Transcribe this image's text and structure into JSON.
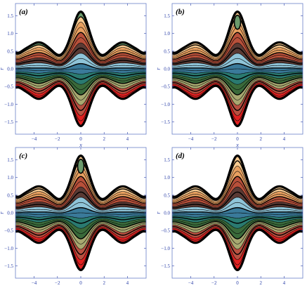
{
  "chart_data": [
    {
      "type": "area",
      "panel": "(a)",
      "xlabel": "x",
      "ylabel": "r",
      "xlim": [
        -5.6,
        5.6
      ],
      "ylim": [
        -1.85,
        1.85
      ],
      "xticks": [
        "−4",
        "−2",
        "0",
        "2",
        "4"
      ],
      "xtick_values": [
        -4,
        -2,
        0,
        2,
        4
      ],
      "yticks": [
        "1.5",
        "1.0",
        "0.5",
        "0.0",
        "−0.5",
        "−1.0",
        "−1.5"
      ],
      "ytick_values": [
        1.5,
        1.0,
        0.5,
        0.0,
        -0.5,
        -1.0,
        -1.5
      ],
      "upper_boundary": {
        "base": 0.55,
        "peak_x": 0,
        "peak_r": 1.62,
        "side_peaks_x": [
          -3.6,
          3.6
        ],
        "side_peak_r": 0.75
      },
      "lower_boundary": {
        "base": -0.6,
        "trough_x": 0,
        "trough_r": -1.62,
        "side_troughs_x": [
          -3.6,
          3.6
        ],
        "side_trough_r": -0.85
      },
      "central_top_fill": "#6b9a6c",
      "inner_closed_bolus": false
    },
    {
      "type": "area",
      "panel": "(b)",
      "xlabel": "x",
      "ylabel": "r",
      "xlim": [
        -5.6,
        5.6
      ],
      "ylim": [
        -1.85,
        1.85
      ],
      "xticks": [
        "−4",
        "−2",
        "0",
        "2",
        "4"
      ],
      "xtick_values": [
        -4,
        -2,
        0,
        2,
        4
      ],
      "yticks": [
        "1.5",
        "1.0",
        "0.5",
        "0.0",
        "−0.5",
        "−1.0",
        "−1.5"
      ],
      "ytick_values": [
        1.5,
        1.0,
        0.5,
        0.0,
        -0.5,
        -1.0,
        -1.5
      ],
      "upper_boundary": {
        "base": 0.55,
        "peak_x": 0,
        "peak_r": 1.62,
        "side_peaks_x": [
          -3.6,
          3.6
        ],
        "side_peak_r": 0.75
      },
      "lower_boundary": {
        "base": -0.6,
        "trough_x": 0,
        "trough_r": -1.62,
        "side_troughs_x": [
          -3.6,
          3.6
        ],
        "side_trough_r": -0.85
      },
      "central_top_fill": "#f7c98f",
      "inner_closed_bolus": true
    },
    {
      "type": "area",
      "panel": "(c)",
      "xlabel": "x",
      "ylabel": "r",
      "xlim": [
        -5.6,
        5.6
      ],
      "ylim": [
        -1.85,
        1.85
      ],
      "xticks": [
        "−4",
        "−2",
        "0",
        "2",
        "4"
      ],
      "xtick_values": [
        -4,
        -2,
        0,
        2,
        4
      ],
      "yticks": [
        "1.5",
        "1.0",
        "0.5",
        "0.0",
        "−0.5",
        "−1.0",
        "−1.5"
      ],
      "ytick_values": [
        1.5,
        1.0,
        0.5,
        0.0,
        -0.5,
        -1.0,
        -1.5
      ],
      "upper_boundary": {
        "base": 0.55,
        "peak_x": 0,
        "peak_r": 1.62,
        "side_peaks_x": [
          -3.6,
          3.6
        ],
        "side_peak_r": 0.75
      },
      "lower_boundary": {
        "base": -0.6,
        "trough_x": 0,
        "trough_r": -1.62,
        "side_troughs_x": [
          -3.6,
          3.6
        ],
        "side_trough_r": -0.85
      },
      "central_top_fill": "#f7c98f",
      "inner_closed_bolus": true
    },
    {
      "type": "area",
      "panel": "(d)",
      "xlabel": "x",
      "ylabel": "r",
      "xlim": [
        -5.6,
        5.6
      ],
      "ylim": [
        -1.85,
        1.85
      ],
      "xticks": [
        "−4",
        "−2",
        "0",
        "2",
        "4"
      ],
      "xtick_values": [
        -4,
        -2,
        0,
        2,
        4
      ],
      "yticks": [
        "1.5",
        "1.0",
        "0.5",
        "0.0",
        "−0.5",
        "−1.0",
        "−1.5"
      ],
      "ytick_values": [
        1.5,
        1.0,
        0.5,
        0.0,
        -0.5,
        -1.0,
        -1.5
      ],
      "upper_boundary": {
        "base": 0.55,
        "peak_x": 0,
        "peak_r": 1.62,
        "side_peaks_x": [
          -3.6,
          3.6
        ],
        "side_peak_r": 0.75
      },
      "lower_boundary": {
        "base": -0.6,
        "trough_x": 0,
        "trough_r": -1.62,
        "side_troughs_x": [
          -3.6,
          3.6
        ],
        "side_trough_r": -0.85
      },
      "central_top_fill": "#f7c98f",
      "inner_closed_bolus": false
    }
  ],
  "colors": {
    "band_palette": [
      "#f7c98f",
      "#e8a060",
      "#b8503a",
      "#5a3a34",
      "#8fc4d8",
      "#3a7a9a",
      "#2a7a70",
      "#3a6a3a",
      "#a8a870",
      "#b85040",
      "#e02020"
    ],
    "stroke": "#000000",
    "axis": "#2a3fa8",
    "frame": "#6a7fc8"
  }
}
